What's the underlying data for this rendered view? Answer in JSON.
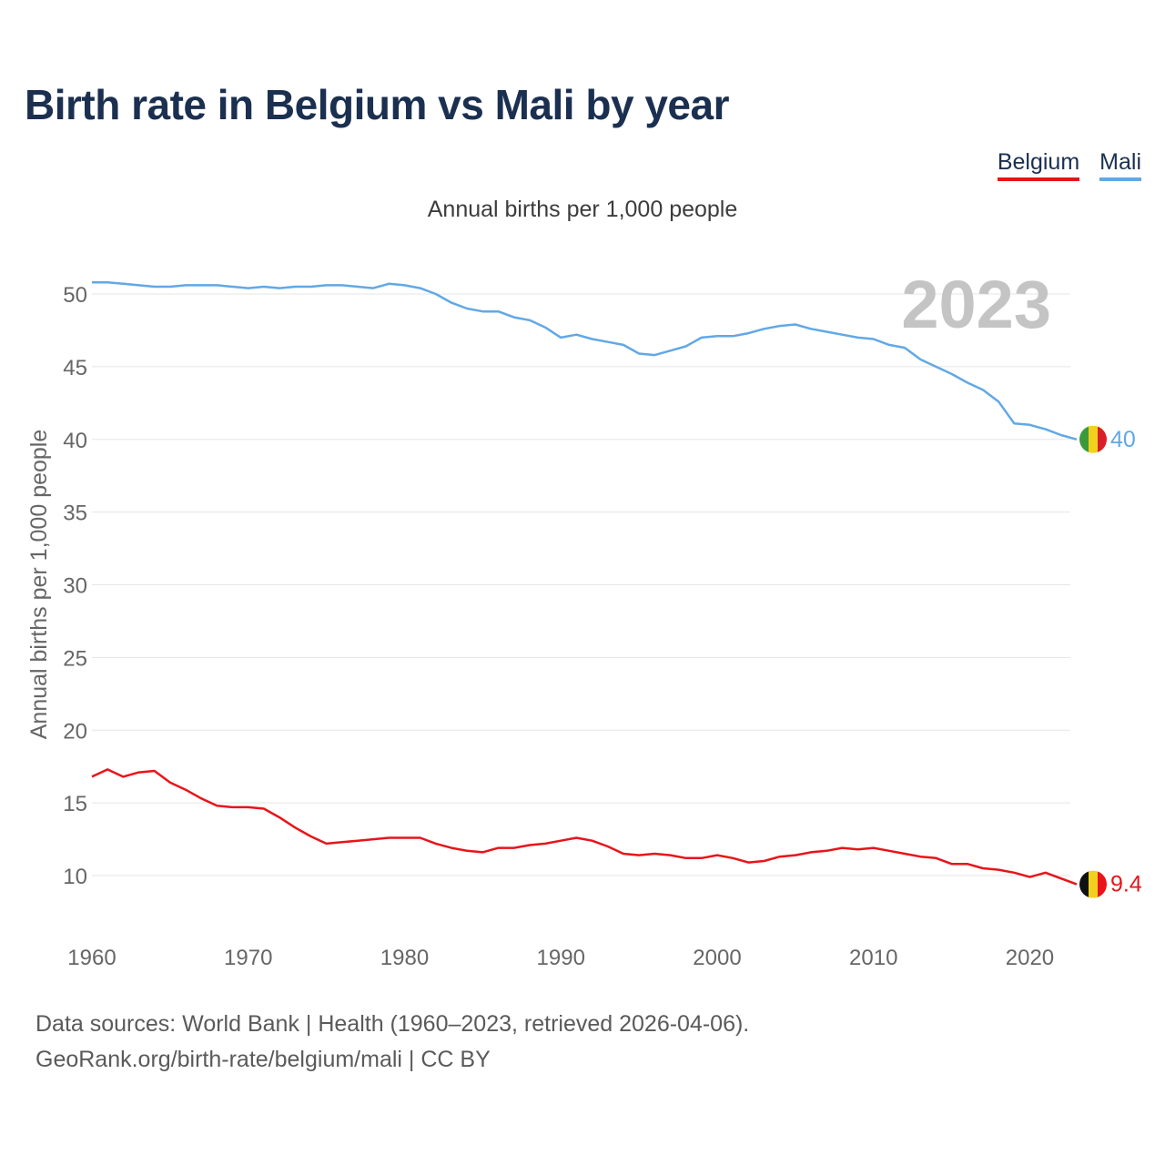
{
  "title": "Birth rate in Belgium vs Mali by year",
  "subtitle": "Annual births per 1,000 people",
  "legend": {
    "belgium": "Belgium",
    "mali": "Mali"
  },
  "year_watermark": "2023",
  "end_labels": {
    "belgium": "9.4",
    "mali": "40"
  },
  "source_line1": "Data sources: World Bank | Health (1960–2023, retrieved 2026-04-06).",
  "source_line2": "GeoRank.org/birth-rate/belgium/mali | CC BY",
  "colors": {
    "belgium": "#e8141a",
    "mali": "#62a8e5",
    "grid": "#e5e5e5",
    "tick": "#666666",
    "watermark": "#c4c4c4"
  },
  "chart_data": {
    "type": "line",
    "title": "Birth rate in Belgium vs Mali by year",
    "ylabel": "Annual births per 1,000 people",
    "xlabel": "",
    "xlim": [
      1960,
      2023
    ],
    "ylim": [
      6,
      54
    ],
    "yticks": [
      10,
      15,
      20,
      25,
      30,
      35,
      40,
      45,
      50
    ],
    "xticks": [
      1960,
      1970,
      1980,
      1990,
      2000,
      2010,
      2020
    ],
    "x": [
      1960,
      1961,
      1962,
      1963,
      1964,
      1965,
      1966,
      1967,
      1968,
      1969,
      1970,
      1971,
      1972,
      1973,
      1974,
      1975,
      1976,
      1977,
      1978,
      1979,
      1980,
      1981,
      1982,
      1983,
      1984,
      1985,
      1986,
      1987,
      1988,
      1989,
      1990,
      1991,
      1992,
      1993,
      1994,
      1995,
      1996,
      1997,
      1998,
      1999,
      2000,
      2001,
      2002,
      2003,
      2004,
      2005,
      2006,
      2007,
      2008,
      2009,
      2010,
      2011,
      2012,
      2013,
      2014,
      2015,
      2016,
      2017,
      2018,
      2019,
      2020,
      2021,
      2022,
      2023
    ],
    "series": [
      {
        "name": "Mali",
        "values": [
          50.8,
          50.8,
          50.7,
          50.6,
          50.5,
          50.5,
          50.6,
          50.6,
          50.6,
          50.5,
          50.4,
          50.5,
          50.4,
          50.5,
          50.5,
          50.6,
          50.6,
          50.5,
          50.4,
          50.7,
          50.6,
          50.4,
          50.0,
          49.4,
          49.0,
          48.8,
          48.8,
          48.4,
          48.2,
          47.7,
          47.0,
          47.2,
          46.9,
          46.7,
          46.5,
          45.9,
          45.8,
          46.1,
          46.4,
          47.0,
          47.1,
          47.1,
          47.3,
          47.6,
          47.8,
          47.9,
          47.6,
          47.4,
          47.2,
          47.0,
          46.9,
          46.5,
          46.3,
          45.5,
          45.0,
          44.5,
          43.9,
          43.4,
          42.6,
          41.1,
          41.0,
          40.7,
          40.3,
          40.0
        ]
      },
      {
        "name": "Belgium",
        "values": [
          16.8,
          17.3,
          16.8,
          17.1,
          17.2,
          16.4,
          15.9,
          15.3,
          14.8,
          14.7,
          14.7,
          14.6,
          14.0,
          13.3,
          12.7,
          12.2,
          12.3,
          12.4,
          12.5,
          12.6,
          12.6,
          12.6,
          12.2,
          11.9,
          11.7,
          11.6,
          11.9,
          11.9,
          12.1,
          12.2,
          12.4,
          12.6,
          12.4,
          12.0,
          11.5,
          11.4,
          11.5,
          11.4,
          11.2,
          11.2,
          11.4,
          11.2,
          10.9,
          11.0,
          11.3,
          11.4,
          11.6,
          11.7,
          11.9,
          11.8,
          11.9,
          11.7,
          11.5,
          11.3,
          11.2,
          10.8,
          10.8,
          10.5,
          10.4,
          10.2,
          9.9,
          10.2,
          9.8,
          9.4
        ]
      }
    ]
  }
}
